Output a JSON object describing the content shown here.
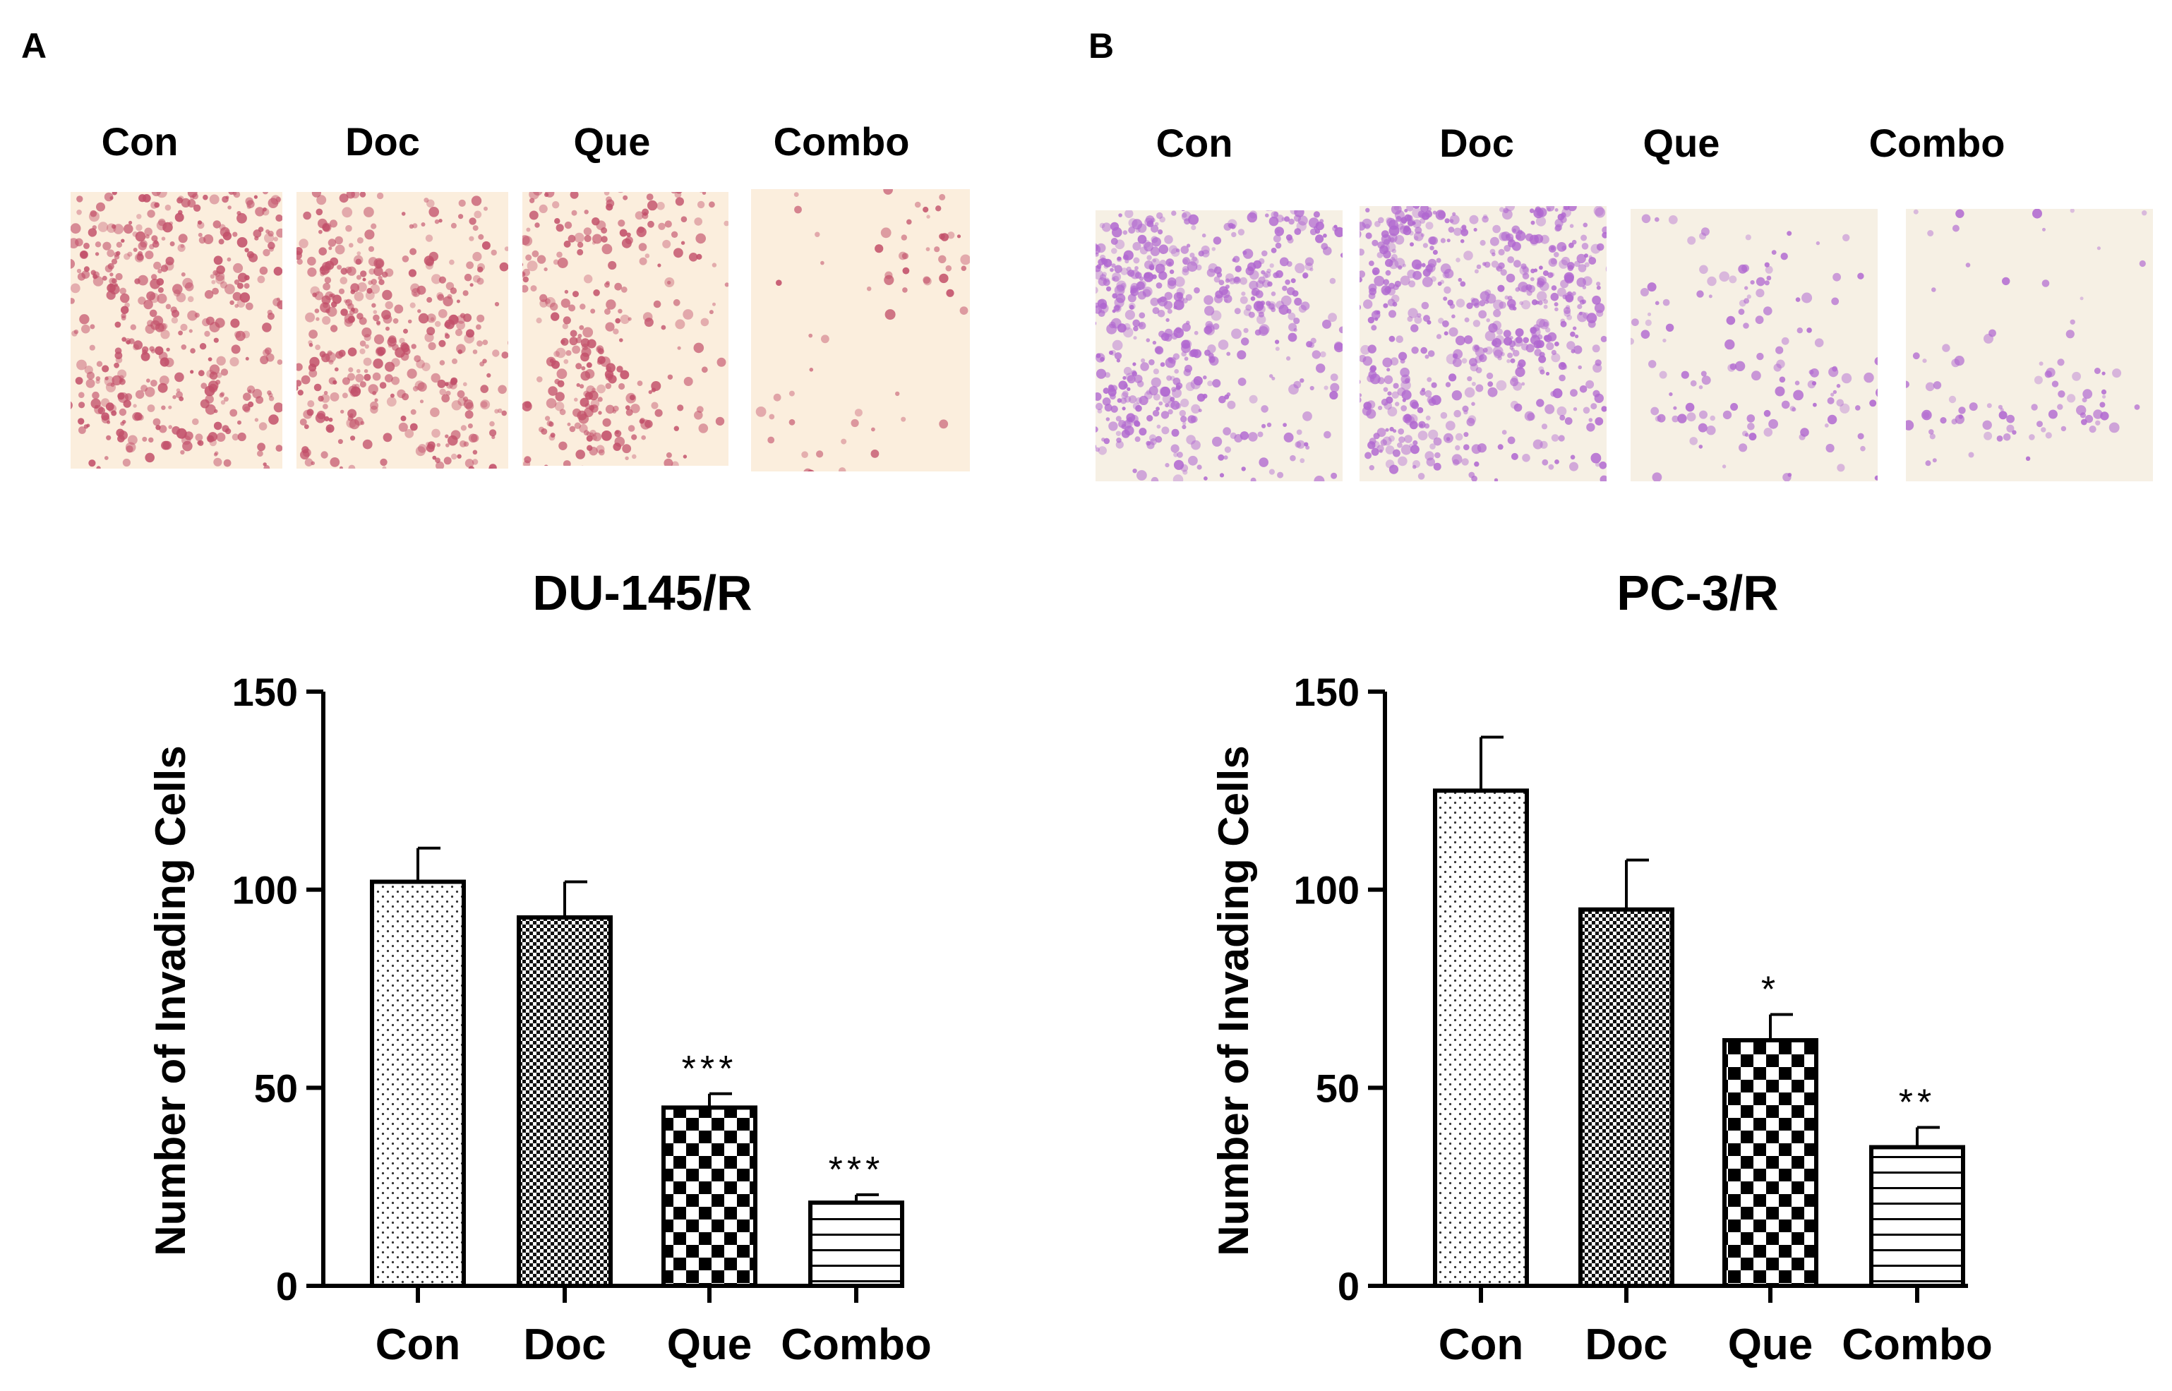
{
  "panels": [
    {
      "letter": "A",
      "image_labels": [
        "Con",
        "Doc",
        "Que",
        "Combo"
      ],
      "stain_color": "#c2506a",
      "background_color": "#fbeedd"
    },
    {
      "letter": "B",
      "image_labels": [
        "Con",
        "Doc",
        "Que",
        "Combo"
      ],
      "stain_color": "#b067d0",
      "background_color": "#f6f0e4"
    }
  ],
  "chart_data": [
    {
      "type": "bar",
      "title": "DU-145/R",
      "ylabel": "Number of Invading  Cells",
      "xlabel": "",
      "categories": [
        "Con",
        "Doc",
        "Que",
        "Combo"
      ],
      "values": [
        102,
        93,
        45,
        21
      ],
      "errors": [
        8.5,
        9,
        3.5,
        2
      ],
      "significance": [
        "",
        "",
        "***",
        "***"
      ],
      "patterns": [
        "dots",
        "fine-check",
        "checker",
        "hlines"
      ],
      "ylim": [
        0,
        150
      ],
      "yticks": [
        0,
        50,
        100,
        150
      ],
      "grid": false
    },
    {
      "type": "bar",
      "title": "PC-3/R",
      "ylabel": "Number of Invading  Cells",
      "xlabel": "",
      "categories": [
        "Con",
        "Doc",
        "Que",
        "Combo"
      ],
      "values": [
        125,
        95,
        62,
        35
      ],
      "errors": [
        13.5,
        12.5,
        6.5,
        5
      ],
      "significance": [
        "",
        "",
        "*",
        "**"
      ],
      "patterns": [
        "dots",
        "fine-check",
        "checker",
        "hlines"
      ],
      "ylim": [
        0,
        150
      ],
      "yticks": [
        0,
        50,
        100,
        150
      ],
      "grid": false
    }
  ]
}
